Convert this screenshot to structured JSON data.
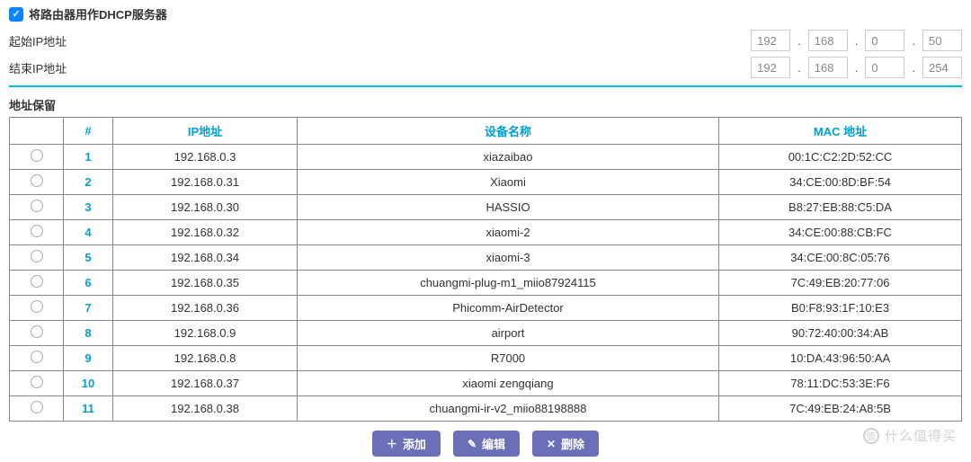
{
  "dhcp": {
    "checkbox_checked": true,
    "label": "将路由器用作DHCP服务器",
    "start_label": "起始IP地址",
    "end_label": "结束IP地址",
    "start_ip": [
      "192",
      "168",
      "0",
      "50"
    ],
    "end_ip": [
      "192",
      "168",
      "0",
      "254"
    ]
  },
  "reservation": {
    "title": "地址保留",
    "headers": {
      "num": "#",
      "ip": "IP地址",
      "name": "设备名称",
      "mac": "MAC 地址"
    },
    "rows": [
      {
        "n": "1",
        "ip": "192.168.0.3",
        "name": "xiazaibao",
        "mac": "00:1C:C2:2D:52:CC"
      },
      {
        "n": "2",
        "ip": "192.168.0.31",
        "name": "Xiaomi",
        "mac": "34:CE:00:8D:BF:54"
      },
      {
        "n": "3",
        "ip": "192.168.0.30",
        "name": "HASSIO",
        "mac": "B8:27:EB:88:C5:DA"
      },
      {
        "n": "4",
        "ip": "192.168.0.32",
        "name": "xiaomi-2",
        "mac": "34:CE:00:88:CB:FC"
      },
      {
        "n": "5",
        "ip": "192.168.0.34",
        "name": "xiaomi-3",
        "mac": "34:CE:00:8C:05:76"
      },
      {
        "n": "6",
        "ip": "192.168.0.35",
        "name": "chuangmi-plug-m1_miio87924115",
        "mac": "7C:49:EB:20:77:06"
      },
      {
        "n": "7",
        "ip": "192.168.0.36",
        "name": "Phicomm-AirDetector",
        "mac": "B0:F8:93:1F:10:E3"
      },
      {
        "n": "8",
        "ip": "192.168.0.9",
        "name": "airport",
        "mac": "90:72:40:00:34:AB"
      },
      {
        "n": "9",
        "ip": "192.168.0.8",
        "name": "R7000",
        "mac": "10:DA:43:96:50:AA"
      },
      {
        "n": "10",
        "ip": "192.168.0.37",
        "name": "xiaomi zengqiang",
        "mac": "78:11:DC:53:3E:F6"
      },
      {
        "n": "11",
        "ip": "192.168.0.38",
        "name": "chuangmi-ir-v2_miio88198888",
        "mac": "7C:49:EB:24:A8:5B"
      }
    ]
  },
  "actions": {
    "add": "添加",
    "edit": "编辑",
    "delete": "删除"
  },
  "watermark": "什么值得买",
  "colors": {
    "accent": "#00b9e4",
    "header_text": "#00a0d6",
    "button_bg": "#6a6fb7",
    "checkbox_bg": "#0b84ff"
  }
}
